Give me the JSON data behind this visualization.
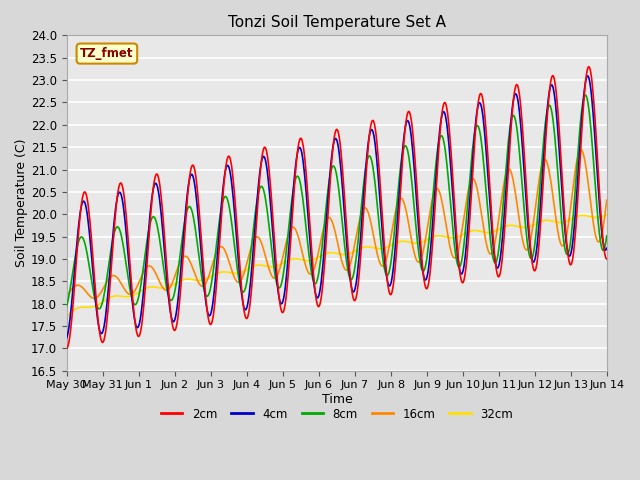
{
  "title": "Tonzi Soil Temperature Set A",
  "xlabel": "Time",
  "ylabel": "Soil Temperature (C)",
  "ylim": [
    16.5,
    24.0
  ],
  "bg_color": "#d8d8d8",
  "plot_bg_color": "#e8e8e8",
  "grid_color": "#ffffff",
  "annotation_text": "TZ_fmet",
  "annotation_bg": "#ffffcc",
  "annotation_border": "#cc8800",
  "series": {
    "2cm": {
      "color": "#ff0000",
      "linewidth": 1.2
    },
    "4cm": {
      "color": "#0000cc",
      "linewidth": 1.2
    },
    "8cm": {
      "color": "#00aa00",
      "linewidth": 1.2
    },
    "16cm": {
      "color": "#ff8800",
      "linewidth": 1.2
    },
    "32cm": {
      "color": "#ffdd00",
      "linewidth": 1.2
    }
  },
  "legend_labels": [
    "2cm",
    "4cm",
    "8cm",
    "16cm",
    "32cm"
  ],
  "legend_colors": [
    "#ff0000",
    "#0000cc",
    "#00aa00",
    "#ff8800",
    "#ffdd00"
  ]
}
